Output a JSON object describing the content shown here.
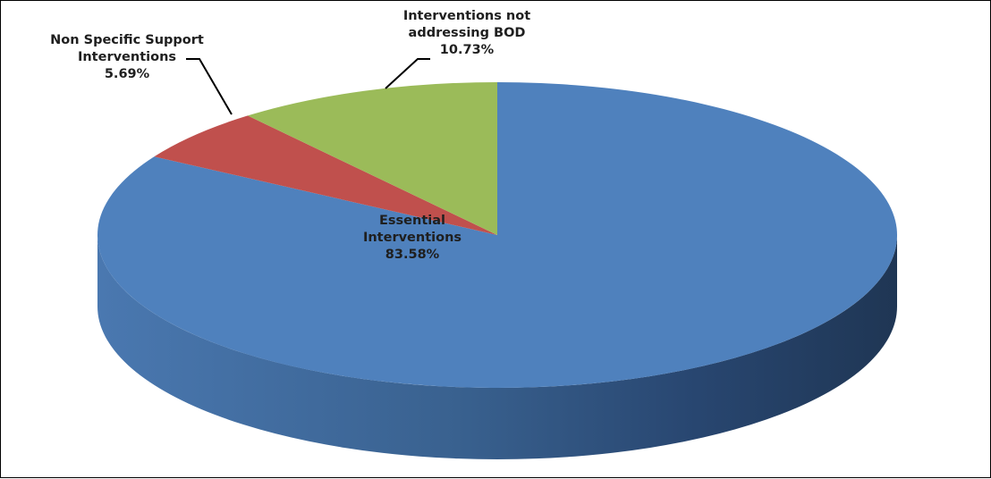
{
  "chart_data": {
    "type": "pie",
    "style": "3d-exploded-none",
    "slices": [
      {
        "name": "Essential Interventions",
        "value": 83.58,
        "label_lines": [
          "Essential",
          "Interventions"
        ],
        "percent_label": "83.58%",
        "color": "#4F81BD"
      },
      {
        "name": "Non Specific Support Interventions",
        "value": 5.69,
        "label_lines": [
          "Non Specific Support",
          "Interventions"
        ],
        "percent_label": "5.69%",
        "color": "#C0504D"
      },
      {
        "name": "Interventions not addressing BOD",
        "value": 10.73,
        "label_lines": [
          "Interventions not",
          "addressing BOD"
        ],
        "percent_label": "10.73%",
        "color": "#9BBB59"
      }
    ],
    "title": "",
    "legend": "none",
    "start_angle": "12-o-clock",
    "direction": "clockwise"
  }
}
